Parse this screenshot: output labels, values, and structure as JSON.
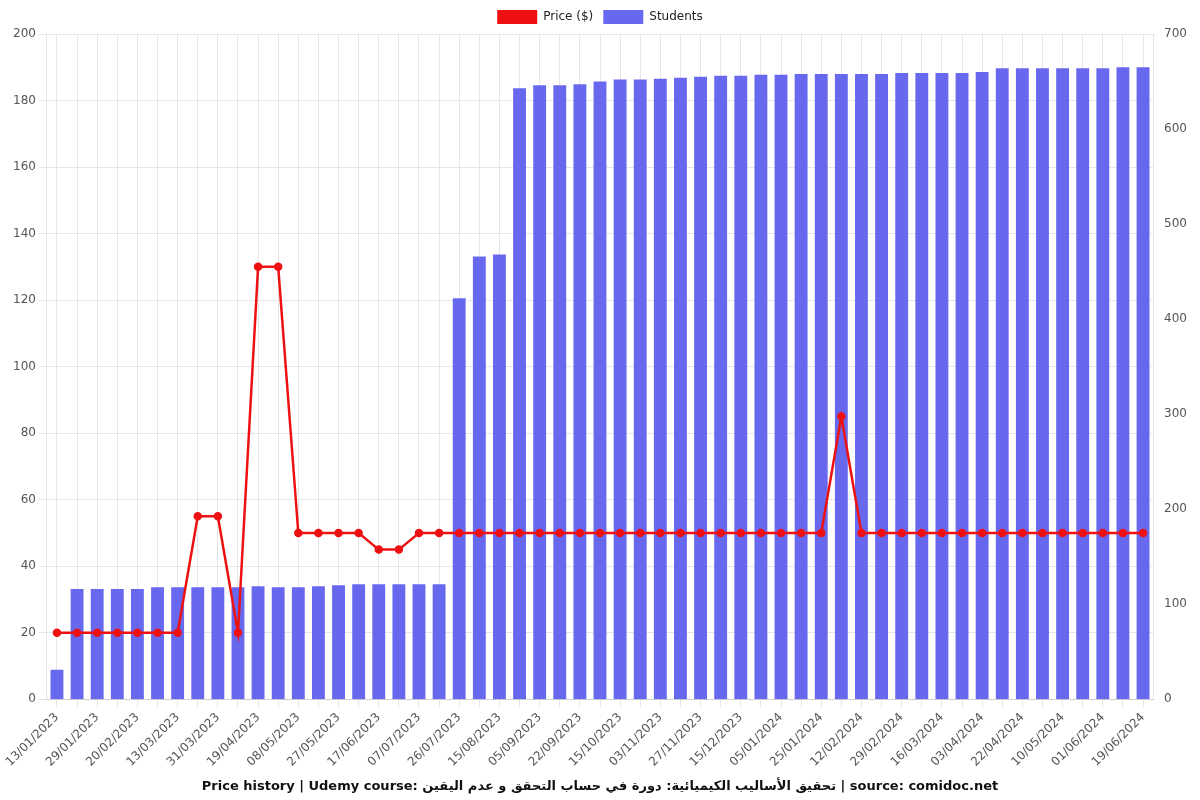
{
  "chart_data": {
    "type": "bar",
    "title": "Price history | Udemy course: تحقيق الأساليب الكيميائية: دورة في حساب التحقق و عدم اليقين | source: comidoc.net",
    "categories": [
      "13/01/2023",
      null,
      "29/01/2023",
      null,
      "20/02/2023",
      null,
      "13/03/2023",
      null,
      "31/03/2023",
      null,
      "19/04/2023",
      null,
      "08/05/2023",
      null,
      "27/05/2023",
      null,
      "17/06/2023",
      null,
      "07/07/2023",
      null,
      "26/07/2023",
      null,
      "15/08/2023",
      null,
      "05/09/2023",
      null,
      "22/09/2023",
      null,
      "15/10/2023",
      null,
      "03/11/2023",
      null,
      "27/11/2023",
      null,
      "15/12/2023",
      null,
      "05/01/2024",
      null,
      "25/01/2024",
      null,
      "12/02/2024",
      null,
      "29/02/2024",
      null,
      "16/03/2024",
      null,
      "03/04/2024",
      null,
      "22/04/2024",
      null,
      "10/05/2024",
      null,
      "01/06/2024",
      null,
      "19/06/2024"
    ],
    "series": [
      {
        "name": "Price ($)",
        "type": "line",
        "color": "#ee1111",
        "marker": "circle",
        "axis": "y",
        "values": [
          20,
          20,
          20,
          20,
          20,
          20,
          20,
          55,
          55,
          20,
          130,
          130,
          50,
          50,
          50,
          50,
          45,
          45,
          50,
          50,
          50,
          50,
          50,
          50,
          50,
          50,
          50,
          50,
          50,
          50,
          50,
          50,
          50,
          50,
          50,
          50,
          50,
          50,
          50,
          85,
          50,
          50,
          50,
          50,
          50,
          50,
          50,
          50,
          50,
          50,
          50,
          50,
          50,
          50,
          50
        ]
      },
      {
        "name": "Students",
        "type": "bar",
        "color": "#6868ee",
        "axis": "y2",
        "values": [
          31,
          116,
          116,
          116,
          116,
          118,
          118,
          118,
          118,
          118,
          119,
          118,
          118,
          119,
          120,
          121,
          121,
          121,
          121,
          121,
          422,
          466,
          468,
          643,
          646,
          646,
          647,
          650,
          652,
          652,
          653,
          654,
          655,
          656,
          656,
          657,
          657,
          658,
          658,
          658,
          658,
          658,
          659,
          659,
          659,
          659,
          660,
          664,
          664,
          664,
          664,
          664,
          664,
          665,
          665
        ]
      }
    ],
    "ylim": [
      0,
      200
    ],
    "yticks": [
      0,
      20,
      40,
      60,
      80,
      100,
      120,
      140,
      160,
      180,
      200
    ],
    "y2lim": [
      0,
      700
    ],
    "y2ticks": [
      0,
      100,
      200,
      300,
      400,
      500,
      600,
      700
    ],
    "grid": true,
    "legend": "top"
  }
}
